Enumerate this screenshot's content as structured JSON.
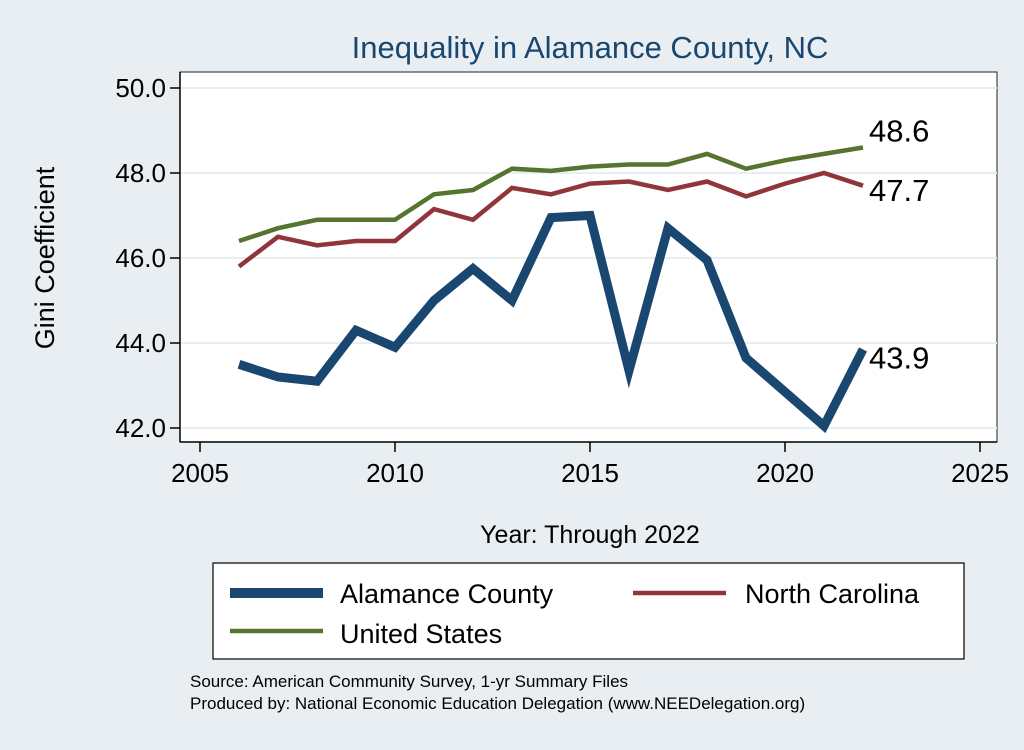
{
  "chart_data": {
    "type": "line",
    "title": "Inequality in Alamance County, NC",
    "xlabel": "Year: Through 2022",
    "ylabel": "Gini Coefficient",
    "xlim": [
      2005,
      2025
    ],
    "ylim": [
      42.0,
      50.0
    ],
    "xticks": [
      2005,
      2010,
      2015,
      2020,
      2025
    ],
    "xtick_labels": [
      "2005",
      "2010",
      "2015",
      "2020",
      "2025"
    ],
    "yticks": [
      42.0,
      44.0,
      46.0,
      48.0,
      50.0
    ],
    "ytick_labels": [
      "42.0",
      "44.0",
      "46.0",
      "48.0",
      "50.0"
    ],
    "grid": true,
    "legend_position": "bottom",
    "x": [
      2006,
      2007,
      2008,
      2009,
      2010,
      2011,
      2012,
      2013,
      2014,
      2015,
      2016,
      2017,
      2018,
      2019,
      2020,
      2021,
      2022
    ],
    "series": [
      {
        "name": "Alamance County",
        "color": "#1a476f",
        "values": [
          43.5,
          43.2,
          43.1,
          44.3,
          43.9,
          45.0,
          45.75,
          45.0,
          46.95,
          47.0,
          43.35,
          46.7,
          45.95,
          43.65,
          42.85,
          42.05,
          43.85
        ],
        "end_label": "43.9"
      },
      {
        "name": "North Carolina",
        "color": "#90353b",
        "values": [
          45.8,
          46.5,
          46.3,
          46.4,
          46.4,
          47.15,
          46.9,
          47.65,
          47.5,
          47.75,
          47.8,
          47.6,
          47.8,
          47.45,
          47.75,
          48.0,
          47.7
        ],
        "end_label": "47.7"
      },
      {
        "name": "United States",
        "color": "#55752f",
        "values": [
          46.4,
          46.7,
          46.9,
          46.9,
          46.9,
          47.5,
          47.6,
          48.1,
          48.05,
          48.15,
          48.2,
          48.2,
          48.45,
          48.1,
          48.3,
          48.45,
          48.6
        ],
        "end_label": "48.6"
      }
    ]
  },
  "legend_items": [
    {
      "label": "Alamance County"
    },
    {
      "label": "North Carolina"
    },
    {
      "label": "United States"
    }
  ],
  "notes": {
    "source": "Source: American Community Survey, 1-yr Summary Files",
    "produced": "Produced by: National Economic Education Delegation (www.NEEDelegation.org)"
  }
}
